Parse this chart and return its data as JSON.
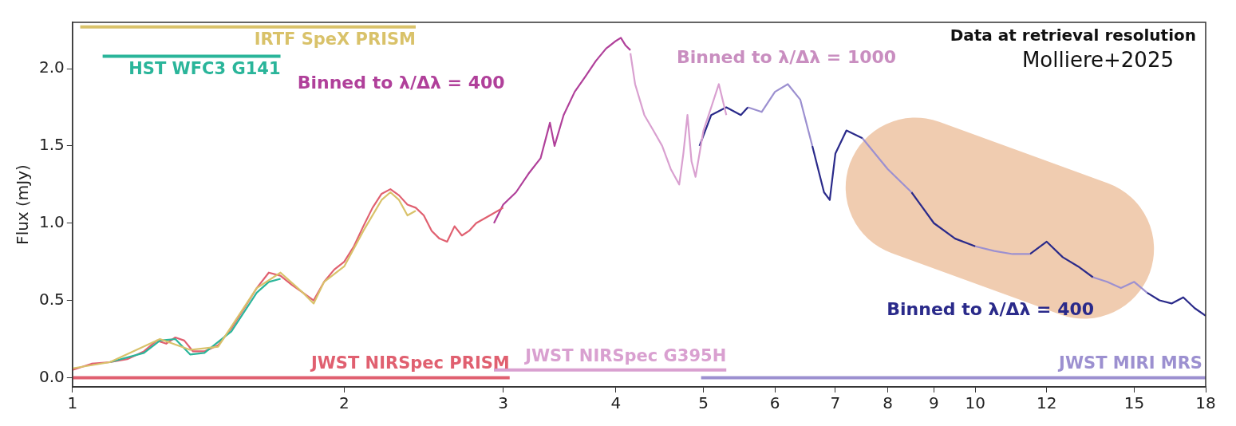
{
  "chart_data": {
    "type": "line",
    "ylabel": "Flux (mJy)",
    "log": "x",
    "xlim": [
      1,
      18
    ],
    "xticks": [
      1,
      2,
      3,
      4,
      5,
      6,
      7,
      8,
      9,
      10,
      12,
      15,
      18
    ],
    "ylim": [
      -0.06,
      2.3
    ],
    "yticks": [
      {
        "value": 0,
        "label": "0.0"
      },
      0.5,
      {
        "value": 1,
        "label": "1.0"
      },
      1.5,
      {
        "value": 2,
        "label": "2.0"
      }
    ],
    "grid": false,
    "legend": false,
    "marker": "none",
    "line_style": "solid",
    "series": [
      {
        "color": "#d9c26a",
        "x": [
          1.0,
          1.1,
          1.25,
          1.35,
          1.45,
          1.6,
          1.7,
          1.8,
          1.85,
          1.9,
          2.0,
          2.1,
          2.2,
          2.25,
          2.3,
          2.35,
          2.4
        ],
        "values": [
          0.06,
          0.1,
          0.25,
          0.18,
          0.2,
          0.58,
          0.68,
          0.55,
          0.48,
          0.62,
          0.72,
          0.95,
          1.15,
          1.2,
          1.15,
          1.05,
          1.08
        ]
      },
      {
        "color": "#2ab59a",
        "x": [
          1.1,
          1.2,
          1.25,
          1.3,
          1.35,
          1.4,
          1.5,
          1.6,
          1.65,
          1.7
        ],
        "values": [
          0.1,
          0.16,
          0.24,
          0.25,
          0.15,
          0.16,
          0.3,
          0.55,
          0.62,
          0.64
        ]
      },
      {
        "color": "#e06070",
        "x": [
          1.0,
          1.05,
          1.1,
          1.15,
          1.2,
          1.24,
          1.27,
          1.3,
          1.33,
          1.36,
          1.4,
          1.45,
          1.5,
          1.55,
          1.6,
          1.65,
          1.7,
          1.75,
          1.8,
          1.85,
          1.9,
          1.95,
          2.0,
          2.05,
          2.1,
          2.15,
          2.2,
          2.25,
          2.3,
          2.35,
          2.4,
          2.45,
          2.5,
          2.55,
          2.6,
          2.65,
          2.7,
          2.75,
          2.8,
          2.9,
          3.0
        ],
        "values": [
          0.05,
          0.09,
          0.1,
          0.12,
          0.17,
          0.24,
          0.22,
          0.26,
          0.24,
          0.17,
          0.17,
          0.21,
          0.32,
          0.45,
          0.58,
          0.68,
          0.66,
          0.6,
          0.55,
          0.5,
          0.62,
          0.7,
          0.75,
          0.85,
          0.98,
          1.1,
          1.19,
          1.22,
          1.18,
          1.12,
          1.1,
          1.05,
          0.95,
          0.9,
          0.88,
          0.98,
          0.92,
          0.95,
          1.0,
          1.05,
          1.1
        ]
      },
      {
        "color": "#b0409a",
        "x": [
          2.93,
          3.0,
          3.1,
          3.2,
          3.3,
          3.38,
          3.42,
          3.5,
          3.6,
          3.7,
          3.8,
          3.9,
          4.0,
          4.05,
          4.1,
          4.15
        ],
        "values": [
          1.0,
          1.12,
          1.2,
          1.32,
          1.42,
          1.65,
          1.5,
          1.7,
          1.85,
          1.95,
          2.05,
          2.13,
          2.18,
          2.2,
          2.15,
          2.12
        ]
      },
      {
        "color": "#d9a0d0",
        "x": [
          4.15,
          4.2,
          4.3,
          4.4,
          4.5,
          4.6,
          4.7,
          4.75,
          4.8,
          4.85,
          4.9,
          5.0,
          5.1,
          5.2,
          5.3
        ],
        "values": [
          2.1,
          1.9,
          1.7,
          1.6,
          1.5,
          1.35,
          1.25,
          1.45,
          1.7,
          1.4,
          1.3,
          1.6,
          1.75,
          1.9,
          1.7
        ]
      },
      {
        "color": "#2a2a8a",
        "x": [
          4.95,
          5.1,
          5.3,
          5.5,
          5.6
        ],
        "values": [
          1.5,
          1.7,
          1.75,
          1.7,
          1.75
        ]
      },
      {
        "color": "#9c90d0",
        "x": [
          5.6,
          5.8,
          6.0,
          6.2,
          6.4,
          6.6
        ],
        "values": [
          1.75,
          1.72,
          1.85,
          1.9,
          1.8,
          1.5
        ]
      },
      {
        "color": "#2a2a8a",
        "x": [
          6.6,
          6.8,
          6.9,
          7.0,
          7.2,
          7.5
        ],
        "values": [
          1.5,
          1.2,
          1.15,
          1.45,
          1.6,
          1.55
        ]
      },
      {
        "color": "#9c90d0",
        "x": [
          7.5,
          8.0,
          8.5
        ],
        "values": [
          1.55,
          1.35,
          1.2
        ]
      },
      {
        "color": "#2a2a8a",
        "x": [
          8.5,
          9.0,
          9.5,
          10.0
        ],
        "values": [
          1.2,
          1.0,
          0.9,
          0.85
        ]
      },
      {
        "color": "#9c90d0",
        "x": [
          10.0,
          10.5,
          11.0,
          11.5
        ],
        "values": [
          0.85,
          0.82,
          0.8,
          0.8
        ]
      },
      {
        "color": "#2a2a8a",
        "x": [
          11.5,
          12.0,
          12.5,
          13.0,
          13.5
        ],
        "values": [
          0.8,
          0.88,
          0.78,
          0.72,
          0.65
        ]
      },
      {
        "color": "#9c90d0",
        "x": [
          13.5,
          14.0,
          14.5,
          15.0,
          15.5
        ],
        "values": [
          0.65,
          0.62,
          0.58,
          0.62,
          0.55
        ]
      },
      {
        "color": "#2a2a8a",
        "x": [
          15.5,
          16.0,
          16.5,
          17.0,
          17.5,
          18.0
        ],
        "values": [
          0.55,
          0.5,
          0.48,
          0.52,
          0.45,
          0.4
        ]
      },
      {
        "name": "IRTF SpeX PRISM",
        "color": "#d9c26a",
        "x": [
          1.02,
          2.4
        ],
        "values": [
          2.27,
          2.27
        ]
      },
      {
        "name": "HST WFC3 G141",
        "color": "#2ab59a",
        "x": [
          1.08,
          1.7
        ],
        "values": [
          2.08,
          2.08
        ]
      },
      {
        "name": "JWST NIRSpec PRISM",
        "color": "#e06070",
        "x": [
          1.0,
          3.05
        ],
        "values": [
          0,
          0
        ]
      },
      {
        "name": "JWST NIRSpec G395H",
        "color": "#d9a0d0",
        "x": [
          2.93,
          5.3
        ],
        "values": [
          0.05,
          0.05
        ]
      },
      {
        "name": "JWST MIRI MRS",
        "color": "#9c90d0",
        "x": [
          4.97,
          18
        ],
        "values": [
          0,
          0
        ]
      }
    ],
    "annotations": [
      "Binned to λ/Δλ = 400",
      "Binned to λ/Δλ = 1000",
      "Binned to λ/Δλ = 400",
      "Data at retrieval resolution",
      "Molliere+2025"
    ]
  }
}
